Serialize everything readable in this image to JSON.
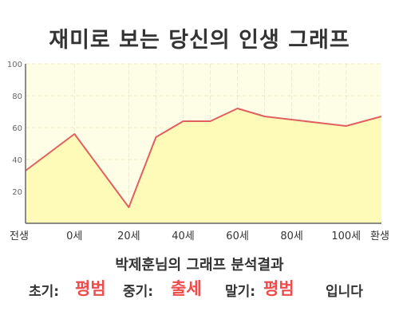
{
  "title": "재미로 보는 당신의 인생 그래프",
  "chart_data": {
    "type": "area",
    "x_categories": [
      "전생",
      "0세",
      "20세",
      "40세",
      "60세",
      "80세",
      "100세",
      "환생"
    ],
    "x": [
      -18,
      0,
      20,
      30,
      40,
      50,
      60,
      70,
      80,
      90,
      100,
      113
    ],
    "y": [
      33,
      56,
      10,
      54,
      64,
      64,
      72,
      67,
      65,
      63,
      61,
      67
    ],
    "ylim": [
      0,
      100
    ],
    "yticks": [
      20,
      40,
      60,
      80,
      100
    ],
    "grid": true,
    "colors": {
      "line": "#e0605f",
      "fill": "#fefbb8",
      "plot_bg": "#fefee6",
      "grid": "#f0e9c9",
      "axis": "#666666"
    }
  },
  "result": {
    "heading": "박제훈님의 그래프 분석결과",
    "early_label": "초기:",
    "early_value": "평범",
    "mid_label": "중기:",
    "mid_value": "출세",
    "late_label": "말기:",
    "late_value": "평범",
    "suffix": "입니다"
  }
}
